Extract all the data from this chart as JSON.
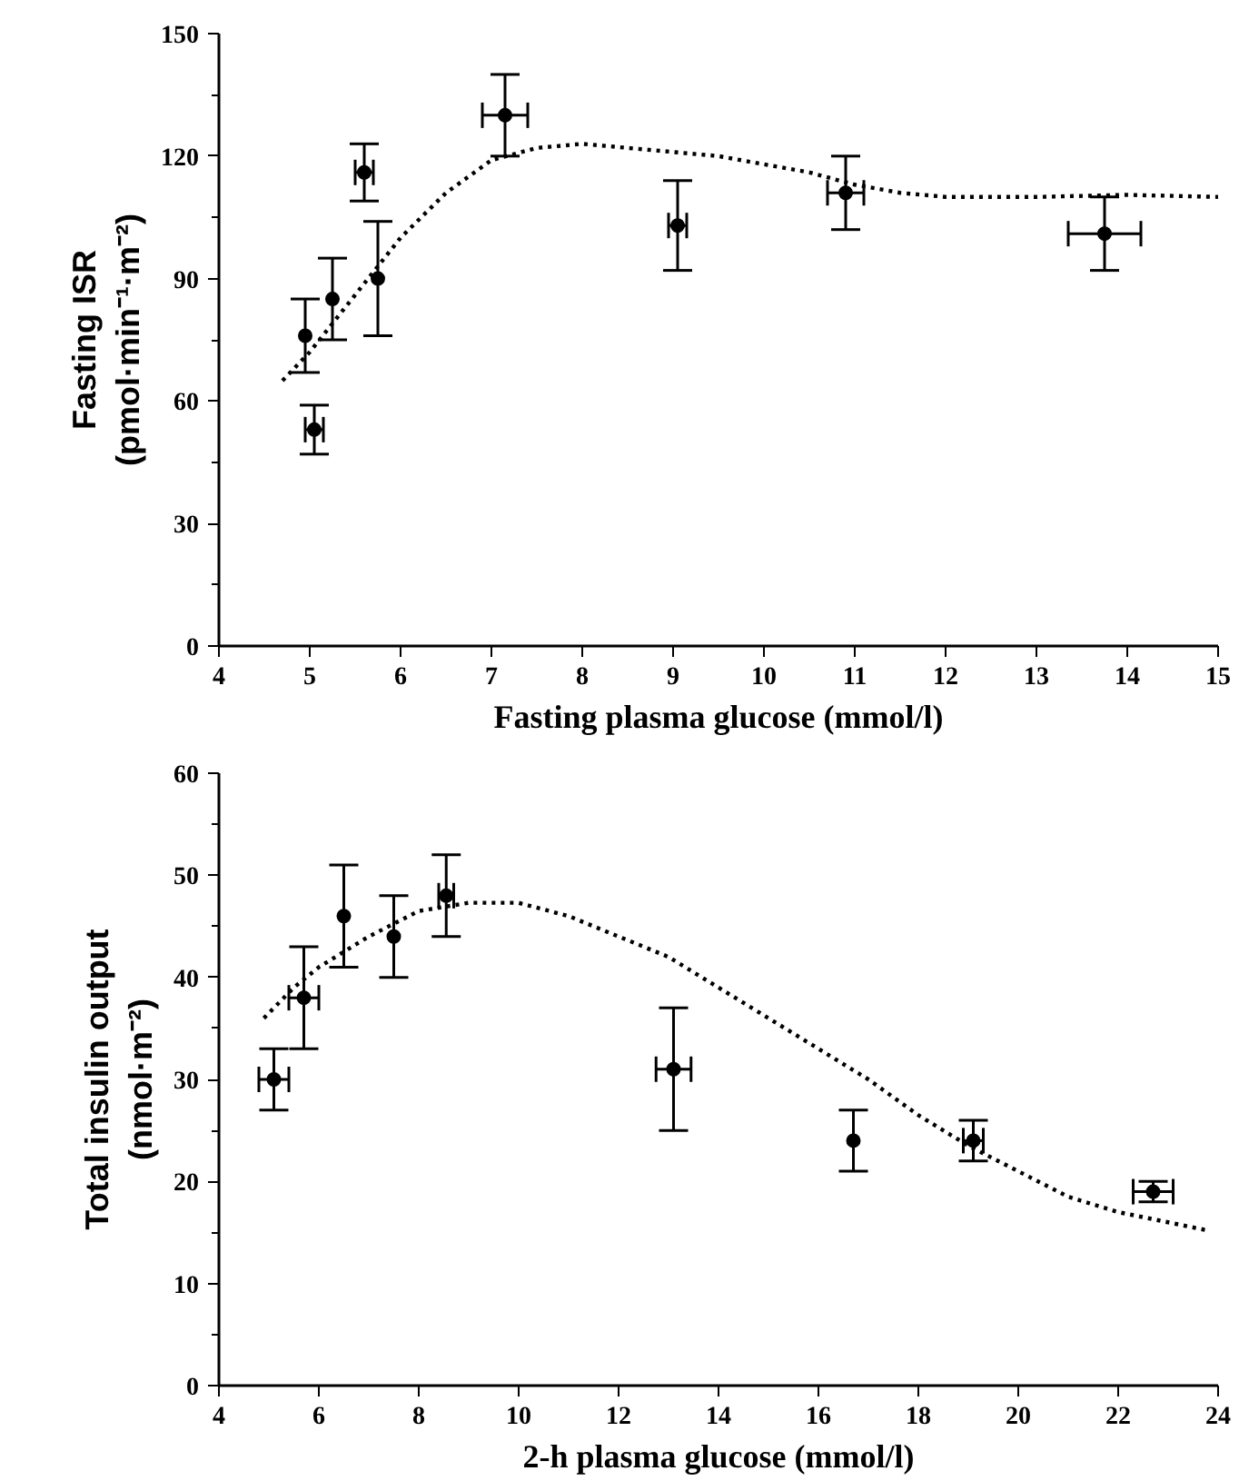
{
  "chart_data": [
    {
      "type": "scatter",
      "xlabel": "Fasting plasma glucose (mmol/l)",
      "ylabel": "Fasting ISR\n(pmol·min⁻¹·m⁻²)",
      "xlim": [
        4,
        15
      ],
      "xticks": [
        4,
        5,
        6,
        7,
        8,
        9,
        10,
        11,
        12,
        13,
        14,
        15
      ],
      "ylim": [
        0,
        150
      ],
      "yticks": [
        0,
        30,
        60,
        90,
        120,
        150
      ],
      "grid": false,
      "series": [
        {
          "color": "#000000",
          "marker": "circle",
          "x": [
            4.95,
            5.05,
            5.25,
            5.6,
            5.75,
            7.15,
            9.05,
            10.9,
            13.75
          ],
          "values": [
            76,
            53,
            85,
            116,
            90,
            130,
            103,
            111,
            101
          ],
          "errors": [
            9,
            6,
            10,
            7,
            14,
            10,
            11,
            9,
            9
          ],
          "xerrors": [
            null,
            0.1,
            null,
            0.1,
            null,
            0.25,
            0.1,
            0.2,
            0.4
          ]
        },
        {
          "type": "line",
          "color": "#000000",
          "line_style": "dotted",
          "x": [
            4.7,
            5,
            5.5,
            6,
            6.5,
            7,
            7.5,
            8,
            8.5,
            9,
            9.5,
            10,
            10.5,
            11,
            11.5,
            12,
            13,
            14,
            15
          ],
          "values": [
            65,
            72,
            86,
            100,
            111,
            119,
            122,
            123,
            122,
            121,
            120,
            118,
            116,
            113,
            111,
            110,
            110,
            110.5,
            110
          ]
        }
      ]
    },
    {
      "type": "scatter",
      "xlabel": "2-h plasma glucose (mmol/l)",
      "ylabel": "Total insulin output\n(nmol·m⁻²)",
      "xlim": [
        4,
        24
      ],
      "xticks": [
        4,
        6,
        8,
        10,
        12,
        14,
        16,
        18,
        20,
        22,
        24
      ],
      "ylim": [
        0,
        60
      ],
      "yticks": [
        0,
        10,
        20,
        30,
        40,
        50,
        60
      ],
      "grid": false,
      "series": [
        {
          "color": "#000000",
          "marker": "circle",
          "x": [
            5.1,
            5.7,
            6.5,
            7.5,
            8.55,
            13.1,
            16.7,
            19.1,
            22.7
          ],
          "values": [
            30,
            38,
            46,
            44,
            48,
            31,
            24,
            24,
            19
          ],
          "errors": [
            3,
            5,
            5,
            4,
            4,
            6,
            3,
            2,
            1
          ],
          "xerrors": [
            0.3,
            0.3,
            null,
            null,
            0.15,
            0.35,
            null,
            0.2,
            0.4
          ]
        },
        {
          "type": "line",
          "color": "#000000",
          "line_style": "dotted",
          "x": [
            4.9,
            5.5,
            6,
            7,
            8,
            9,
            10,
            11,
            12,
            13,
            14,
            15,
            16,
            17,
            18,
            19,
            20,
            21,
            22,
            23,
            23.8
          ],
          "values": [
            36,
            39,
            41,
            44,
            46.5,
            47.3,
            47.3,
            46,
            44,
            42,
            39,
            36,
            33,
            30,
            26.5,
            23.5,
            21,
            18.5,
            17,
            16,
            15.2
          ]
        }
      ]
    }
  ]
}
